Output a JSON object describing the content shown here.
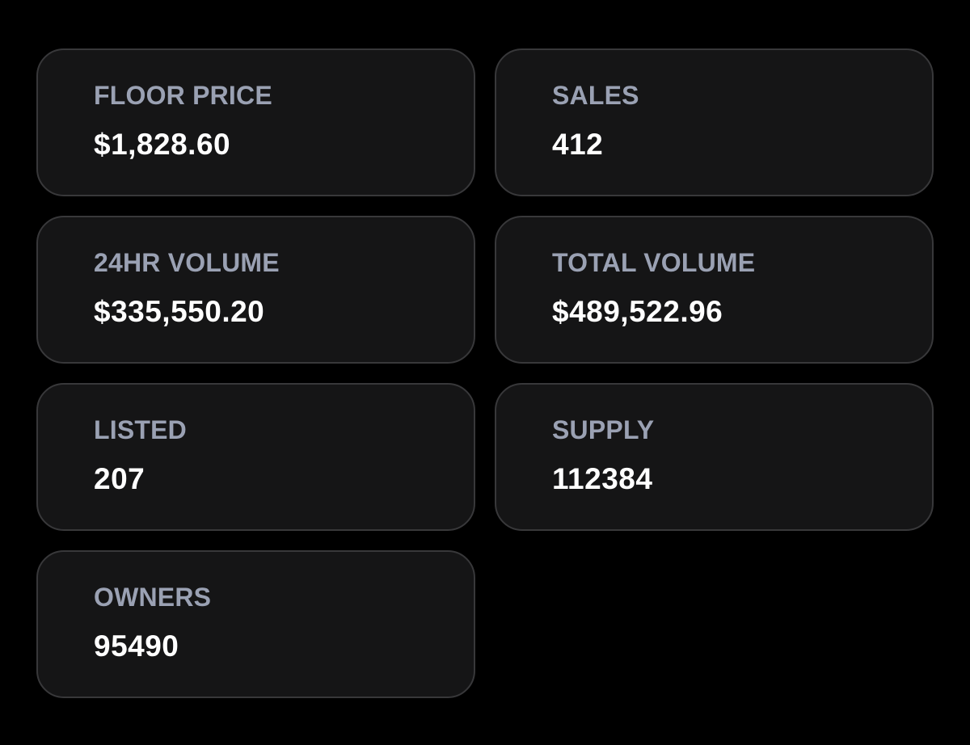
{
  "stats": [
    {
      "label": "FLOOR PRICE",
      "value": "$1,828.60"
    },
    {
      "label": "SALES",
      "value": "412"
    },
    {
      "label": "24HR VOLUME",
      "value": "$335,550.20"
    },
    {
      "label": "TOTAL VOLUME",
      "value": "$489,522.96"
    },
    {
      "label": "LISTED",
      "value": "207"
    },
    {
      "label": "SUPPLY",
      "value": "112384"
    },
    {
      "label": "OWNERS",
      "value": "95490"
    }
  ]
}
